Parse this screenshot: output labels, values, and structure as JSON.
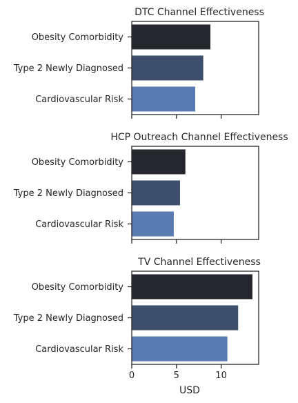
{
  "chart_data": [
    {
      "type": "bar",
      "orientation": "horizontal",
      "title": "DTC Channel Effectiveness",
      "categories": [
        "Obesity Comorbidity",
        "Type 2 Newly Diagnosed",
        "Cardiovascular Risk"
      ],
      "values": [
        8.8,
        8.0,
        7.1
      ],
      "colors": [
        "#25272c",
        "#3e4e6d",
        "#5a7ab2"
      ],
      "xlim": [
        0,
        14.2
      ],
      "xticks": [
        0,
        5,
        10
      ],
      "xtick_labels_visible": false,
      "xlabel": ""
    },
    {
      "type": "bar",
      "orientation": "horizontal",
      "title": "HCP Outreach Channel Effectiveness",
      "categories": [
        "Obesity Comorbidity",
        "Type 2 Newly Diagnosed",
        "Cardiovascular Risk"
      ],
      "values": [
        6.0,
        5.4,
        4.7
      ],
      "colors": [
        "#25272c",
        "#3e4e6d",
        "#5a7ab2"
      ],
      "xlim": [
        0,
        14.2
      ],
      "xticks": [
        0,
        5,
        10
      ],
      "xtick_labels_visible": false,
      "xlabel": ""
    },
    {
      "type": "bar",
      "orientation": "horizontal",
      "title": "TV Channel Effectiveness",
      "categories": [
        "Obesity Comorbidity",
        "Type 2 Newly Diagnosed",
        "Cardiovascular Risk"
      ],
      "values": [
        13.5,
        11.9,
        10.7
      ],
      "colors": [
        "#25272c",
        "#3e4e6d",
        "#5a7ab2"
      ],
      "xlim": [
        0,
        14.2
      ],
      "xticks": [
        0,
        5,
        10
      ],
      "xtick_labels": [
        "0",
        "5",
        "10"
      ],
      "xtick_labels_visible": true,
      "xlabel": "USD"
    }
  ]
}
